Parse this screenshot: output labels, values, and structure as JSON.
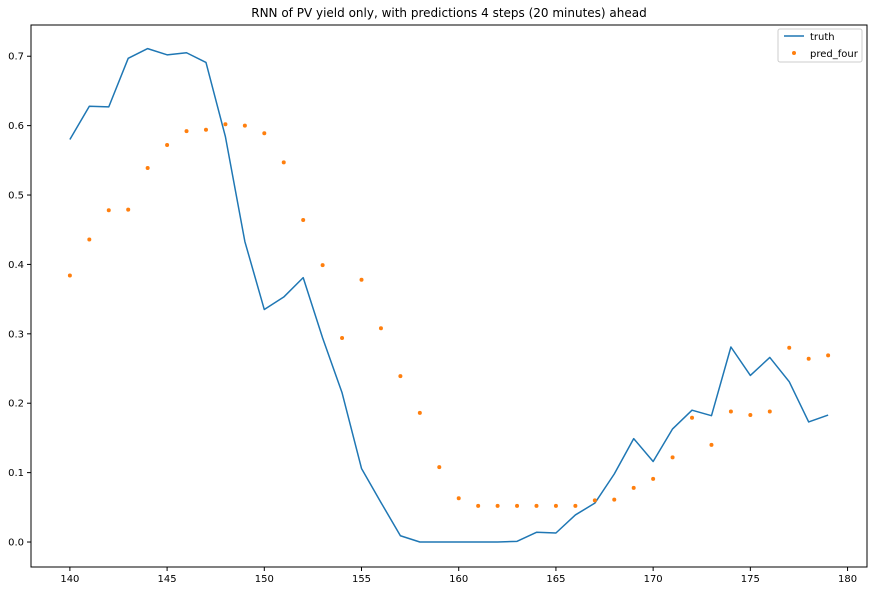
{
  "chart_data": {
    "type": "line",
    "title": "RNN of PV yield only, with predictions 4 steps (20 minutes) ahead",
    "xlabel": "",
    "ylabel": "",
    "xlim": [
      138,
      181
    ],
    "ylim": [
      -0.036,
      0.745
    ],
    "xticks": [
      140,
      145,
      150,
      155,
      160,
      165,
      170,
      175,
      180
    ],
    "yticks": [
      0.0,
      0.1,
      0.2,
      0.3,
      0.4,
      0.5,
      0.6,
      0.7
    ],
    "legend_position": "top-right",
    "grid": false,
    "series": [
      {
        "name": "truth",
        "style": "line",
        "color": "#1f77b4",
        "x": [
          140,
          141,
          142,
          143,
          144,
          145,
          146,
          147,
          148,
          149,
          150,
          151,
          152,
          153,
          154,
          155,
          156,
          157,
          158,
          159,
          160,
          161,
          162,
          163,
          164,
          165,
          166,
          167,
          168,
          169,
          170,
          171,
          172,
          173,
          174,
          175,
          176,
          177,
          178,
          179
        ],
        "y": [
          0.58,
          0.628,
          0.627,
          0.697,
          0.711,
          0.702,
          0.705,
          0.691,
          0.584,
          0.433,
          0.335,
          0.353,
          0.381,
          0.294,
          0.215,
          0.106,
          0.057,
          0.009,
          0.0,
          0.0,
          0.0,
          0.0,
          0.0,
          0.001,
          0.014,
          0.013,
          0.039,
          0.056,
          0.098,
          0.149,
          0.116,
          0.163,
          0.19,
          0.182,
          0.281,
          0.24,
          0.266,
          0.231,
          0.173,
          0.183
        ]
      },
      {
        "name": "pred_four",
        "style": "markers",
        "color": "#ff7f0e",
        "x": [
          140,
          141,
          142,
          143,
          144,
          145,
          146,
          147,
          148,
          149,
          150,
          151,
          152,
          153,
          154,
          155,
          156,
          157,
          158,
          159,
          160,
          161,
          162,
          163,
          164,
          165,
          166,
          167,
          168,
          169,
          170,
          171,
          172,
          173,
          174,
          175,
          176,
          177,
          178,
          179
        ],
        "y": [
          0.384,
          0.436,
          0.478,
          0.479,
          0.539,
          0.572,
          0.592,
          0.594,
          0.602,
          0.6,
          0.589,
          0.547,
          0.464,
          0.399,
          0.294,
          0.378,
          0.308,
          0.239,
          0.186,
          0.108,
          0.063,
          0.052,
          0.052,
          0.052,
          0.052,
          0.052,
          0.052,
          0.06,
          0.061,
          0.078,
          0.091,
          0.122,
          0.179,
          0.14,
          0.188,
          0.183,
          0.188,
          0.28,
          0.264,
          0.269
        ]
      }
    ]
  }
}
